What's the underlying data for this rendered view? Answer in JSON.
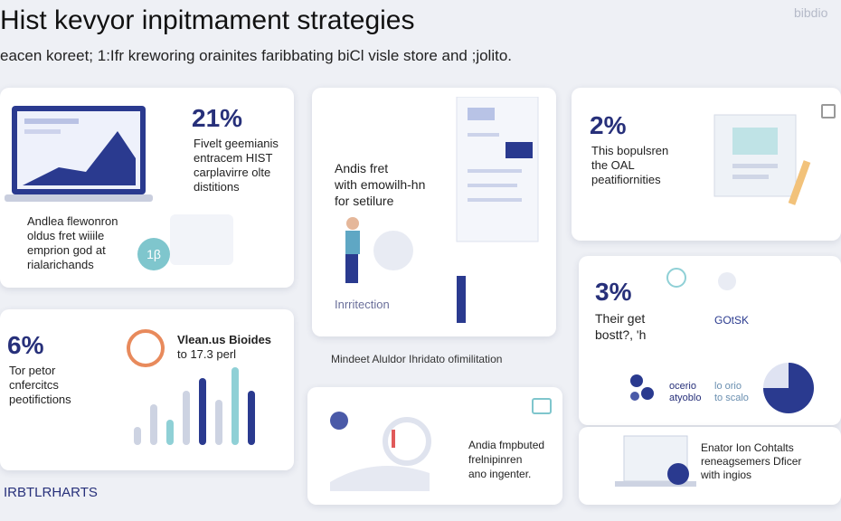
{
  "header": {
    "title": "Hist kevyor inpitmament strategies",
    "subtitle": "eacen koreet; 1:Ifr kreworing orainites faribbating biCl visle store and ;jolito.",
    "brand": "bibdio"
  },
  "cards": [
    {
      "stat": "21%",
      "lines": [
        "Fivelt geemianis",
        "entracem HIST",
        "carplavirre olte",
        "distitions"
      ],
      "note": [
        "Andlea flewonron",
        "oldus fret wiiile",
        "emprion god at",
        "rialarichands"
      ],
      "badge": "1β"
    },
    {
      "lines": [
        "Andis fret",
        "with emowilh-hn",
        "for setilure"
      ],
      "note": [
        "Inrritection"
      ]
    },
    {
      "stat": "2%",
      "lines": [
        "This bopulsren",
        "the OAL",
        "peatifiornities"
      ]
    },
    {
      "stat": "6%",
      "lines": [
        "Tor petor",
        "cnfercitcs",
        "peotifictions"
      ],
      "note": [
        "Vlean.us Bioides",
        "to 17.3 perl"
      ]
    },
    {
      "lines": [
        "Andia fmpbuted",
        "frelnipinren",
        "ano ingenter."
      ]
    },
    {
      "stat": "3%",
      "lines": [
        "Their get",
        "bostt?, 'h"
      ],
      "note": [
        "GOtSK",
        "ocerio",
        "atyoblo",
        "lo orio",
        "to scalo"
      ]
    },
    {
      "lines": [
        "Enator Ion Cohtalts",
        "reneagsemers Dficer",
        "with ingios"
      ]
    }
  ],
  "caption": "Mindeet Aluldor Ihridato ofimilitation",
  "footer": "IRBTLRHARTS"
}
